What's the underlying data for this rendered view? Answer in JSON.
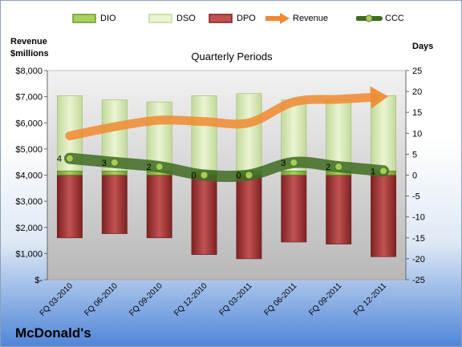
{
  "company": "McDonald's",
  "left_axis_title": [
    "Revenue",
    "$millions"
  ],
  "right_axis_title": "Days",
  "chart_data": {
    "type": "bar",
    "title": "Quarterly Periods",
    "categories": [
      "FQ 03-2010",
      "FQ 06-2010",
      "FQ 09-2010",
      "FQ 12-2010",
      "FQ 03-2011",
      "FQ 06-2011",
      "FQ 09-2011",
      "FQ 12-2011"
    ],
    "left_axis": {
      "ylim": [
        0,
        8000
      ],
      "ticks": [
        "$-",
        "$1,000",
        "$2,000",
        "$3,000",
        "$4,000",
        "$5,000",
        "$6,000",
        "$7,000",
        "$8,000"
      ]
    },
    "right_axis": {
      "ylim": [
        -25,
        25
      ],
      "ticks": [
        "-25",
        "-20",
        "-15",
        "-10",
        "-5",
        "0",
        "5",
        "10",
        "15",
        "20",
        "25"
      ]
    },
    "series": [
      {
        "name": "DIO",
        "axis": "right",
        "kind": "stacked-bar",
        "color": "#8fbc4a",
        "values": [
          1,
          1,
          1,
          1,
          1,
          1,
          1,
          1
        ]
      },
      {
        "name": "DSO",
        "axis": "right",
        "kind": "stacked-bar",
        "color": "#d7e8b0",
        "values": [
          18,
          17,
          16.5,
          18,
          18.5,
          17,
          17,
          18
        ]
      },
      {
        "name": "DPO",
        "axis": "right",
        "kind": "stacked-bar",
        "color": "#a63c3c",
        "values": [
          -15,
          -14,
          -15,
          -19,
          -20,
          -16,
          -16.5,
          -19.5
        ]
      },
      {
        "name": "Revenue",
        "axis": "left",
        "kind": "line",
        "color": "#f08a30",
        "values": [
          5500,
          5850,
          6100,
          6050,
          6000,
          6800,
          6900,
          7000
        ]
      },
      {
        "name": "CCC",
        "axis": "right",
        "kind": "line",
        "color": "#4a7a2a",
        "values": [
          4,
          3,
          2,
          0,
          0,
          3,
          2,
          1
        ],
        "data_labels": [
          "4",
          "3",
          "2",
          "0",
          "0",
          "3",
          "2",
          "1"
        ]
      }
    ],
    "legend": "top",
    "grid": false
  }
}
